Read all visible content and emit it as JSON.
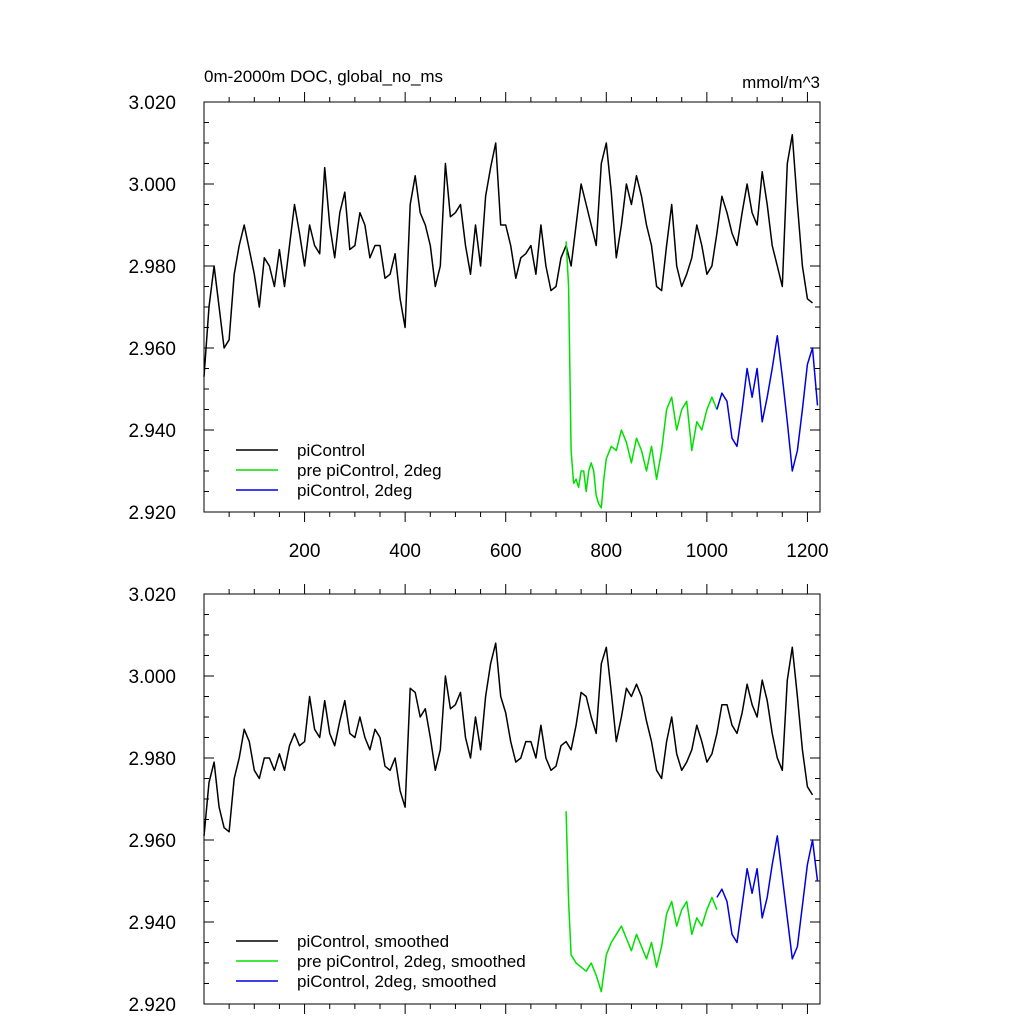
{
  "chart_data": [
    {
      "type": "line",
      "title": "0m-2000m DOC, global_no_ms",
      "units": "mmol/m^3",
      "xlim": [
        0,
        1225
      ],
      "ylim": [
        2.92,
        3.02
      ],
      "xticks": [
        200,
        400,
        600,
        800,
        1000,
        1200
      ],
      "xtick_labels": [
        "200",
        "400",
        "600",
        "800",
        "1000",
        "1200"
      ],
      "yticks": [
        2.92,
        2.94,
        2.96,
        2.98,
        3.0,
        3.02
      ],
      "ytick_labels": [
        "2.920",
        "2.940",
        "2.960",
        "2.980",
        "3.000",
        "3.020"
      ],
      "legend_position": "bottom-left",
      "series": [
        {
          "name": "piControl",
          "color": "#000000",
          "x": [
            0,
            10,
            20,
            30,
            40,
            50,
            60,
            70,
            80,
            90,
            100,
            110,
            120,
            130,
            140,
            150,
            160,
            170,
            180,
            190,
            200,
            210,
            220,
            230,
            240,
            250,
            260,
            270,
            280,
            290,
            300,
            310,
            320,
            330,
            340,
            350,
            360,
            370,
            380,
            390,
            400,
            410,
            420,
            430,
            440,
            450,
            460,
            470,
            480,
            490,
            500,
            510,
            520,
            530,
            540,
            550,
            560,
            570,
            580,
            590,
            600,
            610,
            620,
            630,
            640,
            650,
            660,
            670,
            680,
            690,
            700,
            710,
            720,
            730,
            740,
            750,
            760,
            770,
            780,
            790,
            800,
            810,
            820,
            830,
            840,
            850,
            860,
            870,
            880,
            890,
            900,
            910,
            920,
            930,
            940,
            950,
            960,
            970,
            980,
            990,
            1000,
            1010,
            1020,
            1030,
            1040,
            1050,
            1060,
            1070,
            1080,
            1090,
            1100,
            1110,
            1120,
            1130,
            1140,
            1150,
            1160,
            1170,
            1180,
            1190,
            1200,
            1210
          ],
          "y": [
            2.953,
            2.97,
            2.98,
            2.97,
            2.96,
            2.962,
            2.978,
            2.985,
            2.99,
            2.984,
            2.978,
            2.97,
            2.982,
            2.98,
            2.975,
            2.984,
            2.975,
            2.985,
            2.995,
            2.988,
            2.98,
            2.99,
            2.985,
            2.983,
            3.004,
            2.99,
            2.982,
            2.993,
            2.998,
            2.984,
            2.985,
            2.993,
            2.99,
            2.982,
            2.985,
            2.985,
            2.977,
            2.978,
            2.983,
            2.972,
            2.965,
            2.995,
            3.002,
            2.993,
            2.99,
            2.985,
            2.975,
            2.98,
            3.005,
            2.992,
            2.993,
            2.995,
            2.985,
            2.978,
            2.99,
            2.98,
            2.997,
            3.004,
            3.01,
            2.99,
            2.99,
            2.985,
            2.977,
            2.982,
            2.983,
            2.985,
            2.978,
            2.99,
            2.98,
            2.974,
            2.975,
            2.982,
            2.985,
            2.98,
            2.99,
            3.0,
            2.995,
            2.99,
            2.985,
            3.005,
            3.01,
            2.998,
            2.982,
            2.99,
            3.0,
            2.995,
            3.002,
            2.997,
            2.99,
            2.985,
            2.975,
            2.974,
            2.985,
            2.995,
            2.98,
            2.975,
            2.978,
            2.982,
            2.99,
            2.985,
            2.978,
            2.98,
            2.988,
            2.997,
            2.993,
            2.988,
            2.985,
            2.993,
            3.0,
            2.993,
            2.99,
            3.003,
            2.995,
            2.985,
            2.98,
            2.975,
            3.005,
            3.012,
            2.995,
            2.98,
            2.972,
            2.971
          ]
        },
        {
          "name": "pre piControl, 2deg",
          "color": "#00e000",
          "x": [
            720,
            725,
            730,
            735,
            740,
            745,
            750,
            755,
            760,
            765,
            770,
            775,
            780,
            785,
            790,
            795,
            800,
            810,
            820,
            830,
            840,
            850,
            860,
            870,
            880,
            890,
            900,
            910,
            920,
            930,
            940,
            950,
            960,
            970,
            980,
            990,
            1000,
            1010,
            1020
          ],
          "y": [
            2.986,
            2.975,
            2.935,
            2.927,
            2.928,
            2.926,
            2.93,
            2.93,
            2.925,
            2.93,
            2.932,
            2.93,
            2.924,
            2.922,
            2.921,
            2.928,
            2.933,
            2.936,
            2.935,
            2.94,
            2.937,
            2.932,
            2.938,
            2.935,
            2.93,
            2.936,
            2.928,
            2.935,
            2.945,
            2.948,
            2.94,
            2.945,
            2.947,
            2.935,
            2.942,
            2.94,
            2.945,
            2.948,
            2.945
          ]
        },
        {
          "name": "piControl, 2deg",
          "color": "#0000e0",
          "x": [
            1020,
            1030,
            1040,
            1050,
            1060,
            1070,
            1080,
            1090,
            1100,
            1110,
            1120,
            1130,
            1140,
            1150,
            1160,
            1170,
            1180,
            1190,
            1200,
            1210,
            1220
          ],
          "y": [
            2.945,
            2.949,
            2.947,
            2.938,
            2.936,
            2.945,
            2.955,
            2.948,
            2.955,
            2.942,
            2.948,
            2.955,
            2.963,
            2.953,
            2.942,
            2.93,
            2.935,
            2.945,
            2.956,
            2.96,
            2.946
          ]
        }
      ]
    },
    {
      "type": "line",
      "title": "",
      "xlim": [
        0,
        1225
      ],
      "ylim": [
        2.92,
        3.02
      ],
      "yticks": [
        2.92,
        2.94,
        2.96,
        2.98,
        3.0,
        3.02
      ],
      "ytick_labels": [
        "2.920",
        "2.940",
        "2.960",
        "2.980",
        "3.000",
        "3.020"
      ],
      "legend_position": "bottom-left",
      "series": [
        {
          "name": "piControl, smoothed",
          "color": "#000000",
          "x": [
            0,
            10,
            20,
            30,
            40,
            50,
            60,
            70,
            80,
            90,
            100,
            110,
            120,
            130,
            140,
            150,
            160,
            170,
            180,
            190,
            200,
            210,
            220,
            230,
            240,
            250,
            260,
            270,
            280,
            290,
            300,
            310,
            320,
            330,
            340,
            350,
            360,
            370,
            380,
            390,
            400,
            410,
            420,
            430,
            440,
            450,
            460,
            470,
            480,
            490,
            500,
            510,
            520,
            530,
            540,
            550,
            560,
            570,
            580,
            590,
            600,
            610,
            620,
            630,
            640,
            650,
            660,
            670,
            680,
            690,
            700,
            710,
            720,
            730,
            740,
            750,
            760,
            770,
            780,
            790,
            800,
            810,
            820,
            830,
            840,
            850,
            860,
            870,
            880,
            890,
            900,
            910,
            920,
            930,
            940,
            950,
            960,
            970,
            980,
            990,
            1000,
            1010,
            1020,
            1030,
            1040,
            1050,
            1060,
            1070,
            1080,
            1090,
            1100,
            1110,
            1120,
            1130,
            1140,
            1150,
            1160,
            1170,
            1180,
            1190,
            1200,
            1210
          ],
          "y": [
            2.961,
            2.974,
            2.979,
            2.968,
            2.963,
            2.962,
            2.975,
            2.98,
            2.987,
            2.984,
            2.977,
            2.975,
            2.98,
            2.98,
            2.977,
            2.981,
            2.977,
            2.983,
            2.986,
            2.983,
            2.984,
            2.995,
            2.987,
            2.985,
            2.994,
            2.986,
            2.983,
            2.989,
            2.994,
            2.986,
            2.985,
            2.99,
            2.985,
            2.982,
            2.987,
            2.985,
            2.978,
            2.977,
            2.98,
            2.972,
            2.968,
            2.997,
            2.996,
            2.99,
            2.992,
            2.985,
            2.977,
            2.982,
            3.0,
            2.992,
            2.993,
            2.996,
            2.985,
            2.98,
            2.99,
            2.982,
            2.995,
            3.003,
            3.008,
            2.995,
            2.991,
            2.984,
            2.979,
            2.98,
            2.984,
            2.984,
            2.98,
            2.988,
            2.98,
            2.977,
            2.978,
            2.983,
            2.984,
            2.982,
            2.988,
            2.996,
            2.995,
            2.99,
            2.986,
            3.003,
            3.007,
            2.996,
            2.984,
            2.99,
            2.997,
            2.995,
            2.998,
            2.995,
            2.989,
            2.984,
            2.977,
            2.975,
            2.984,
            2.99,
            2.981,
            2.977,
            2.979,
            2.982,
            2.988,
            2.984,
            2.979,
            2.981,
            2.986,
            2.993,
            2.993,
            2.988,
            2.986,
            2.991,
            2.998,
            2.993,
            2.99,
            2.999,
            2.994,
            2.986,
            2.98,
            2.977,
            2.999,
            3.007,
            2.995,
            2.982,
            2.973,
            2.971
          ]
        },
        {
          "name": "pre piControl, 2deg, smoothed",
          "color": "#00e000",
          "x": [
            720,
            725,
            730,
            740,
            750,
            760,
            770,
            780,
            790,
            800,
            810,
            820,
            830,
            840,
            850,
            860,
            870,
            880,
            890,
            900,
            910,
            920,
            930,
            940,
            950,
            960,
            970,
            980,
            990,
            1000,
            1010,
            1020
          ],
          "y": [
            2.967,
            2.945,
            2.932,
            2.93,
            2.929,
            2.928,
            2.93,
            2.927,
            2.923,
            2.932,
            2.935,
            2.937,
            2.939,
            2.936,
            2.933,
            2.937,
            2.934,
            2.931,
            2.935,
            2.929,
            2.934,
            2.942,
            2.945,
            2.939,
            2.943,
            2.945,
            2.937,
            2.941,
            2.939,
            2.943,
            2.946,
            2.943
          ]
        },
        {
          "name": "piControl, 2deg, smoothed",
          "color": "#0000e0",
          "x": [
            1020,
            1030,
            1040,
            1050,
            1060,
            1070,
            1080,
            1090,
            1100,
            1110,
            1120,
            1130,
            1140,
            1150,
            1160,
            1170,
            1180,
            1190,
            1200,
            1210,
            1220
          ],
          "y": [
            2.946,
            2.948,
            2.945,
            2.937,
            2.935,
            2.944,
            2.953,
            2.947,
            2.953,
            2.941,
            2.946,
            2.954,
            2.961,
            2.951,
            2.941,
            2.931,
            2.934,
            2.944,
            2.954,
            2.96,
            2.95
          ]
        }
      ]
    }
  ]
}
